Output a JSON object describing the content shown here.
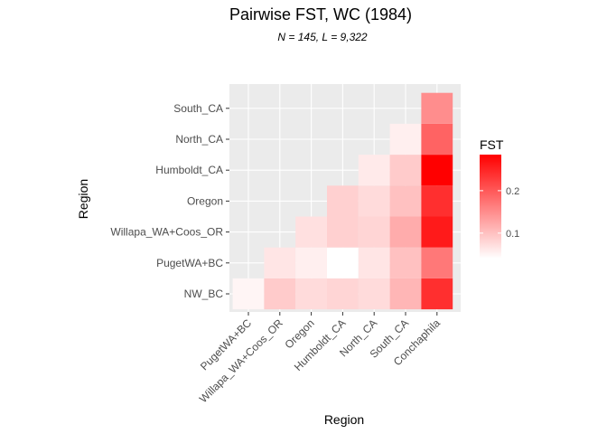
{
  "chart_data": {
    "type": "heatmap",
    "title": "Pairwise FST, WC (1984)",
    "subtitle": "N = 145, L = 9,322",
    "xlabel": "Region",
    "ylabel": "Region",
    "x_categories": [
      "PugetWA+BC",
      "Willapa_WA+Coos_OR",
      "Oregon",
      "Humboldt_CA",
      "North_CA",
      "South_CA",
      "Conchaphila"
    ],
    "y_categories": [
      "NW_BC",
      "PugetWA+BC",
      "Willapa_WA+Coos_OR",
      "Oregon",
      "Humboldt_CA",
      "North_CA",
      "South_CA"
    ],
    "cells": [
      {
        "x": "PugetWA+BC",
        "y": "NW_BC",
        "value": 0.05
      },
      {
        "x": "Willapa_WA+Coos_OR",
        "y": "NW_BC",
        "value": 0.09
      },
      {
        "x": "Oregon",
        "y": "NW_BC",
        "value": 0.075
      },
      {
        "x": "Humboldt_CA",
        "y": "NW_BC",
        "value": 0.08
      },
      {
        "x": "North_CA",
        "y": "NW_BC",
        "value": 0.075
      },
      {
        "x": "South_CA",
        "y": "NW_BC",
        "value": 0.11
      },
      {
        "x": "Conchaphila",
        "y": "NW_BC",
        "value": 0.24
      },
      {
        "x": "Willapa_WA+Coos_OR",
        "y": "PugetWA+BC",
        "value": 0.065
      },
      {
        "x": "Oregon",
        "y": "PugetWA+BC",
        "value": 0.055
      },
      {
        "x": "Humboldt_CA",
        "y": "PugetWA+BC",
        "value": 0.04
      },
      {
        "x": "North_CA",
        "y": "PugetWA+BC",
        "value": 0.065
      },
      {
        "x": "South_CA",
        "y": "PugetWA+BC",
        "value": 0.1
      },
      {
        "x": "Conchaphila",
        "y": "PugetWA+BC",
        "value": 0.17
      },
      {
        "x": "Oregon",
        "y": "Willapa_WA+Coos_OR",
        "value": 0.07
      },
      {
        "x": "Humboldt_CA",
        "y": "Willapa_WA+Coos_OR",
        "value": 0.085
      },
      {
        "x": "North_CA",
        "y": "Willapa_WA+Coos_OR",
        "value": 0.08
      },
      {
        "x": "South_CA",
        "y": "Willapa_WA+Coos_OR",
        "value": 0.12
      },
      {
        "x": "Conchaphila",
        "y": "Willapa_WA+Coos_OR",
        "value": 0.26
      },
      {
        "x": "Humboldt_CA",
        "y": "Oregon",
        "value": 0.085
      },
      {
        "x": "North_CA",
        "y": "Oregon",
        "value": 0.075
      },
      {
        "x": "South_CA",
        "y": "Oregon",
        "value": 0.1
      },
      {
        "x": "Conchaphila",
        "y": "Oregon",
        "value": 0.24
      },
      {
        "x": "North_CA",
        "y": "Humboldt_CA",
        "value": 0.06
      },
      {
        "x": "South_CA",
        "y": "Humboldt_CA",
        "value": 0.09
      },
      {
        "x": "Conchaphila",
        "y": "Humboldt_CA",
        "value": 0.285
      },
      {
        "x": "South_CA",
        "y": "North_CA",
        "value": 0.055
      },
      {
        "x": "Conchaphila",
        "y": "North_CA",
        "value": 0.19
      },
      {
        "x": "Conchaphila",
        "y": "South_CA",
        "value": 0.15
      }
    ],
    "legend": {
      "title": "FST",
      "position": "right",
      "range": [
        0.04,
        0.285
      ],
      "ticks": [
        {
          "value": 0.1,
          "label": "0.1"
        },
        {
          "value": 0.2,
          "label": "0.2"
        }
      ],
      "low_color": "#ffffff",
      "high_color": "#ff0000"
    },
    "panel_background": "#ebebeb",
    "grid": true
  }
}
